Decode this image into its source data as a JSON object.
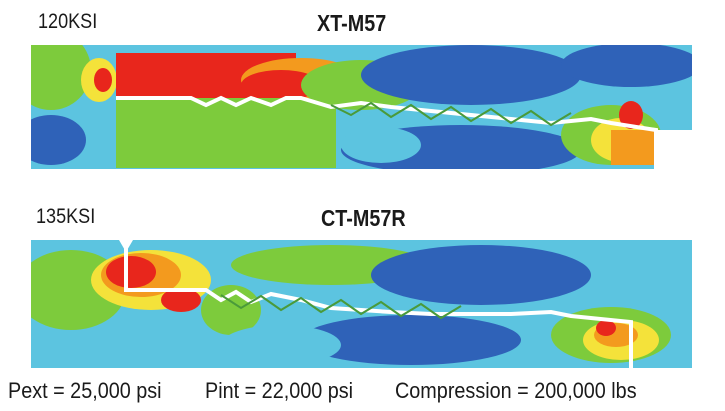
{
  "panels": [
    {
      "grade": "120KSI",
      "model": "XT-M57"
    },
    {
      "grade": "135KSI",
      "model": "CT-M57R"
    }
  ],
  "conditions": {
    "external_pressure": "Pext = 25,000 psi",
    "internal_pressure": "Pint = 22,000 psi",
    "compression": "Compression = 200,000 lbs"
  },
  "colors": {
    "high_stress": "#e8261c",
    "orange": "#f39a1e",
    "yellow": "#f4e23a",
    "green": "#7dcb3c",
    "cyan": "#5cc4e0",
    "blue": "#2f62b8",
    "dark_blue": "#1e3f9e"
  }
}
